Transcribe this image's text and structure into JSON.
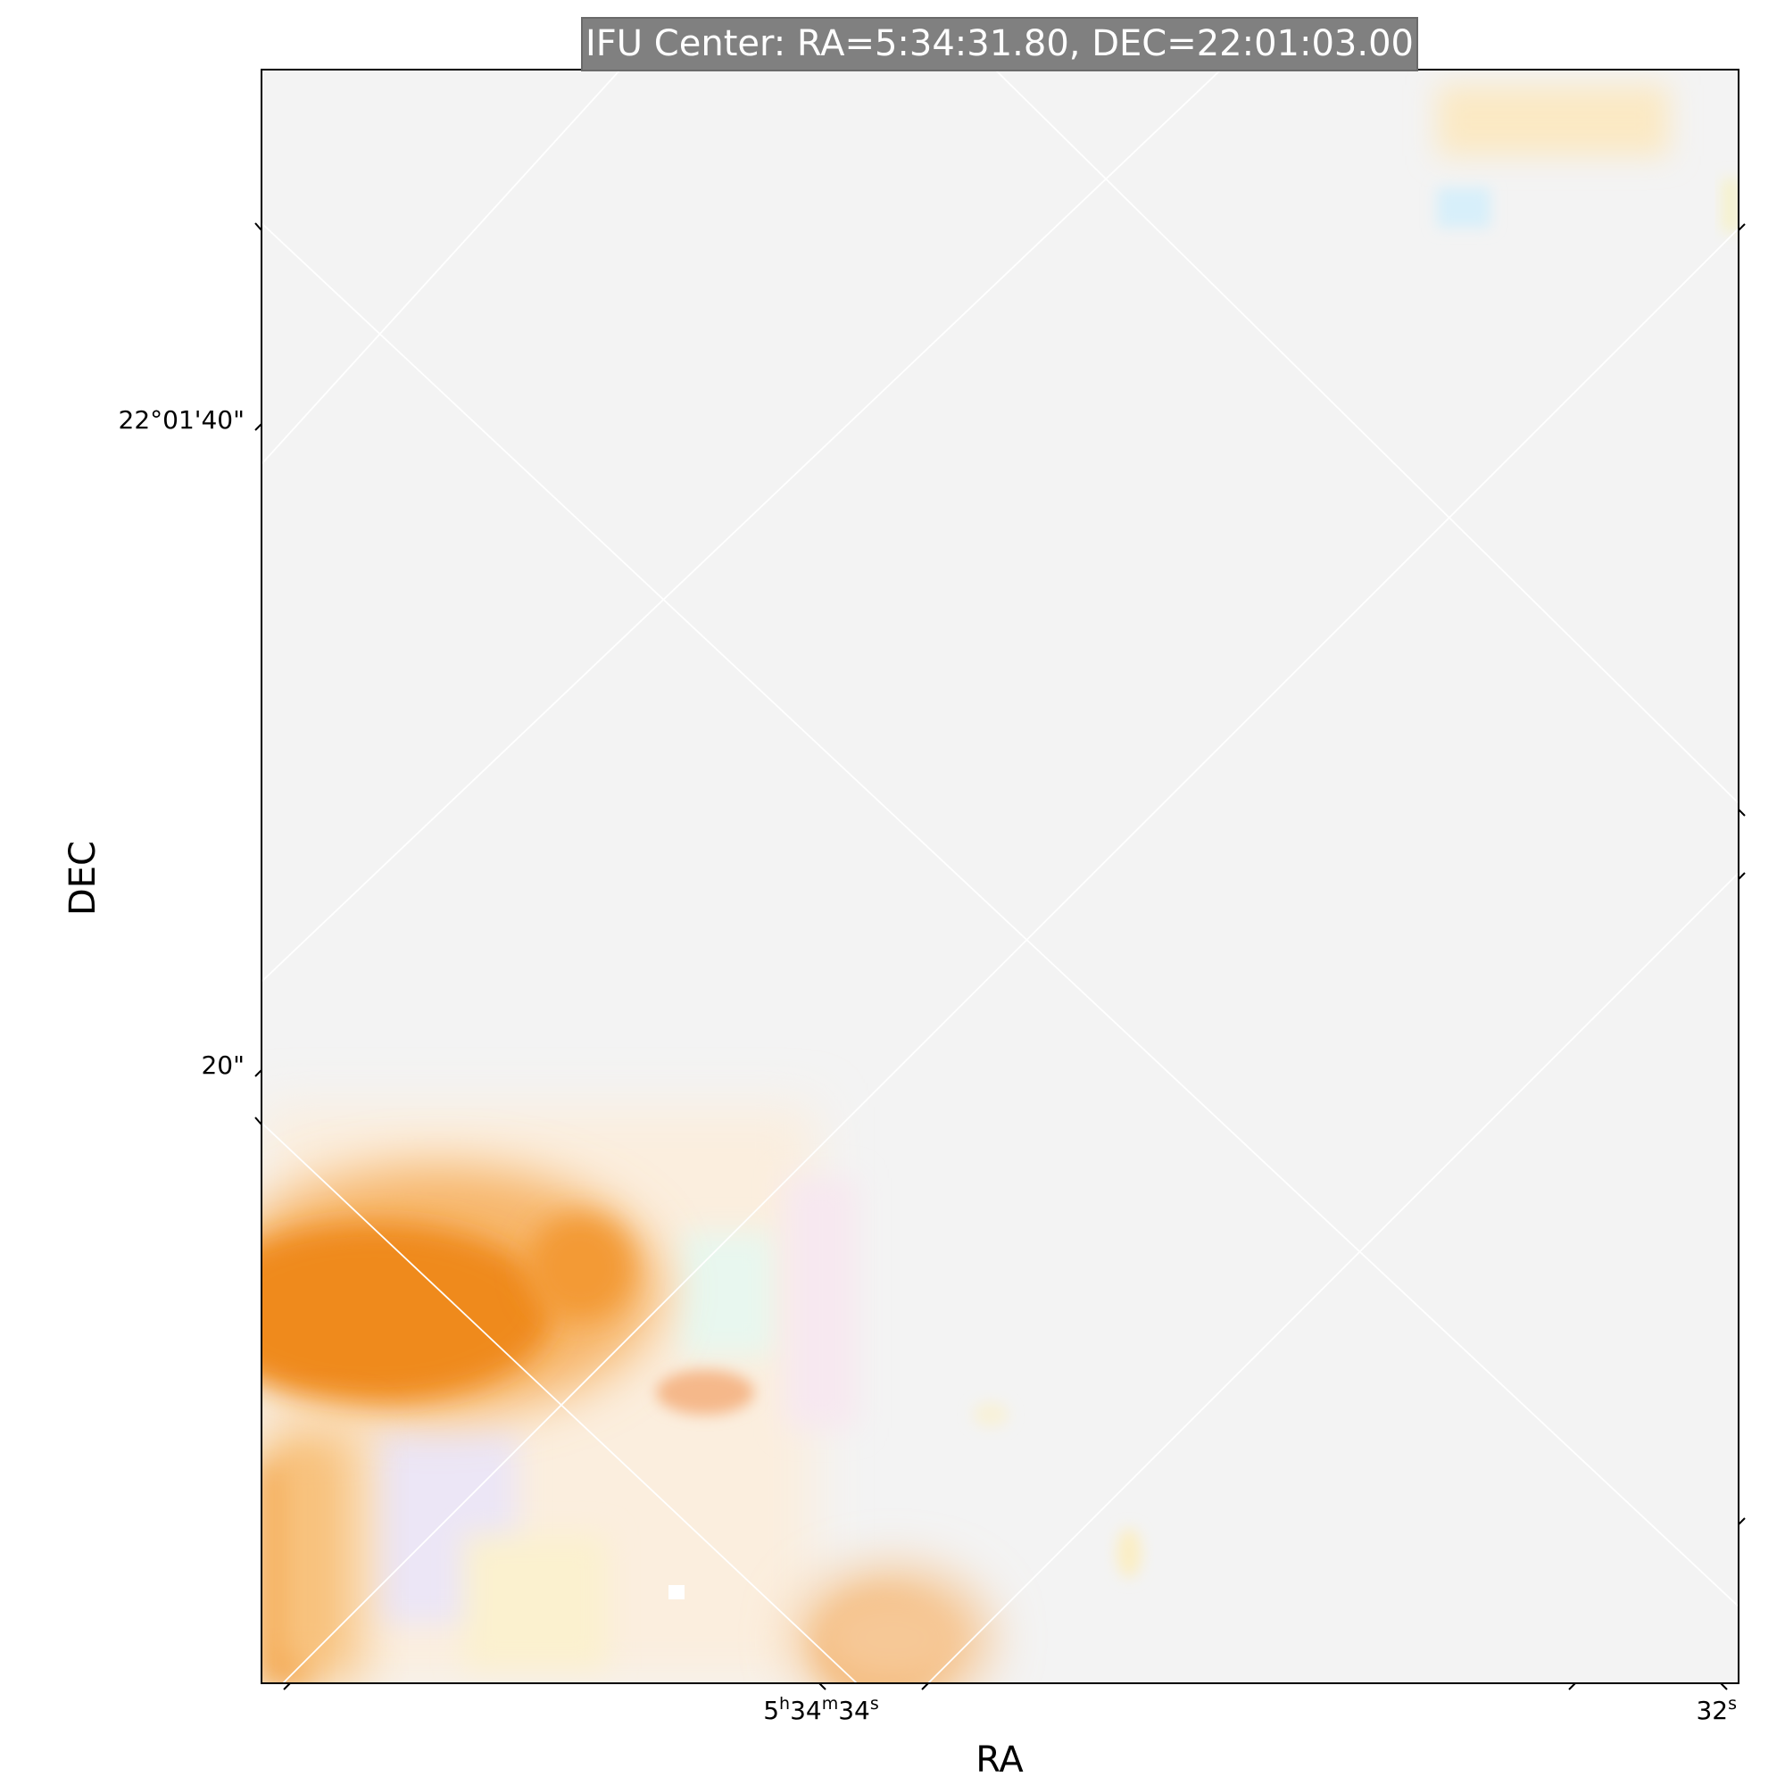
{
  "chart_data": {
    "type": "heatmap",
    "title": "IFU Center: RA=5:34:31.80, DEC=22:01:03.00",
    "xlabel": "RA",
    "ylabel": "DEC",
    "x_tick_labels": [
      {
        "pre": "5",
        "sup1": "h",
        "mid": "34",
        "sup2": "m",
        "post": "34",
        "sup3": "s"
      },
      {
        "pre": "32",
        "sup1": "s",
        "mid": "",
        "sup2": "",
        "post": "",
        "sup3": ""
      }
    ],
    "y_tick_labels": [
      "22°01'40\"",
      "20\""
    ],
    "grid": true,
    "grid_color": "#ffffff",
    "colors": {
      "background": "#f3f3f3",
      "emission": "#ef8a1c",
      "title_box": "#808080",
      "frame": "#000000"
    },
    "emission_regions": [
      {
        "location": "lower-left",
        "intensity": 1.0
      },
      {
        "location": "bottom-edge",
        "intensity": 0.8
      },
      {
        "location": "bottom-center",
        "intensity": 0.9
      },
      {
        "location": "top-right",
        "intensity": 0.3
      }
    ]
  }
}
